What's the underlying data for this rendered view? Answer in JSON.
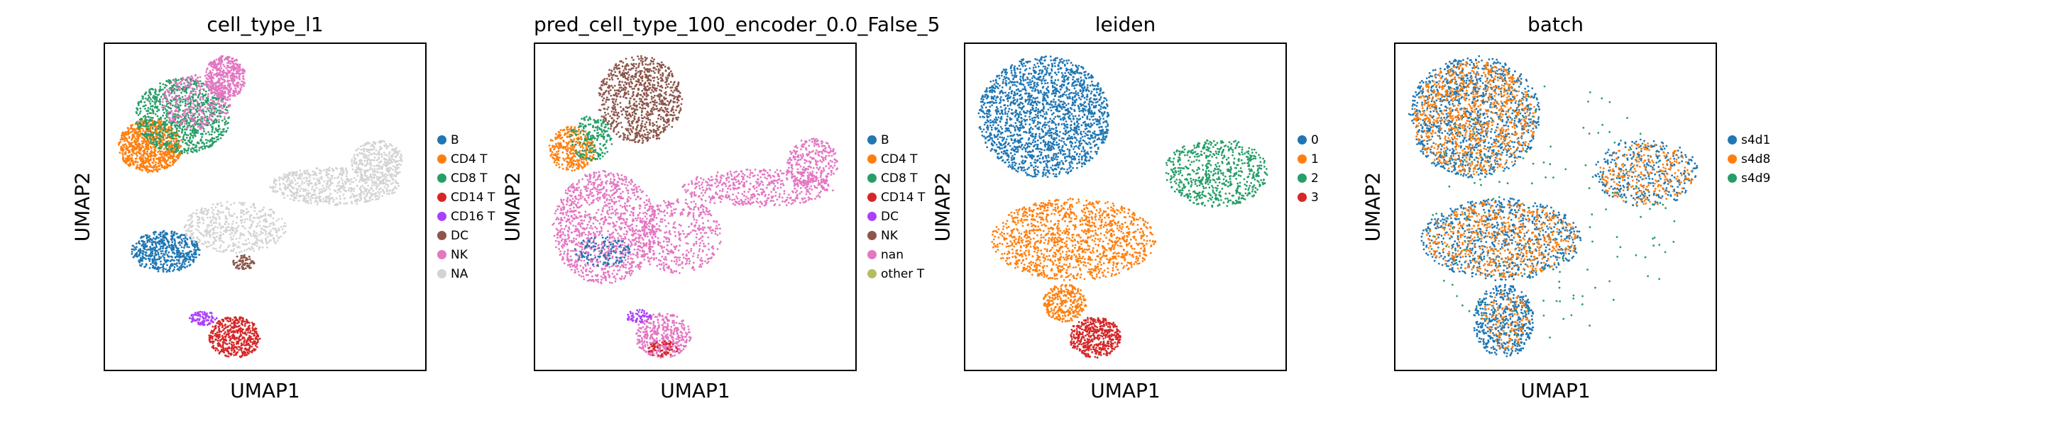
{
  "chart_data": [
    {
      "type": "scatter",
      "title": "cell_type_l1",
      "xlabel": "UMAP1",
      "ylabel": "UMAP2",
      "legend_position": "right",
      "categories": [
        {
          "label": "B",
          "color": "#1f77b4"
        },
        {
          "label": "CD4 T",
          "color": "#ff7f0e"
        },
        {
          "label": "CD8 T",
          "color": "#279e68"
        },
        {
          "label": "CD14 T",
          "color": "#d62728"
        },
        {
          "label": "CD16 T",
          "color": "#aa40fc"
        },
        {
          "label": "DC",
          "color": "#8c564b"
        },
        {
          "label": "NK",
          "color": "#e377c2"
        },
        {
          "label": "NA",
          "color": "#d3d3d3"
        }
      ],
      "clusters": [
        {
          "cat": "CD4 T",
          "x": [
            -4.6,
            -1.6
          ],
          "y": [
            2.9,
            6.0
          ],
          "n": 900
        },
        {
          "cat": "CD8 T",
          "x": [
            -3.8,
            0.6
          ],
          "y": [
            4.0,
            8.4
          ],
          "n": 1000
        },
        {
          "cat": "NK",
          "x": [
            -0.6,
            1.3
          ],
          "y": [
            7.2,
            9.7
          ],
          "n": 450
        },
        {
          "cat": "NK",
          "x": [
            -2.6,
            0.6
          ],
          "y": [
            5.4,
            8.6
          ],
          "n": 300
        },
        {
          "cat": "B",
          "x": [
            -4.0,
            -0.8
          ],
          "y": [
            -2.9,
            -0.5
          ],
          "n": 550
        },
        {
          "cat": "NA",
          "x": [
            -1.6,
            3.2
          ],
          "y": [
            -1.8,
            1.2
          ],
          "n": 500
        },
        {
          "cat": "NA",
          "x": [
            2.4,
            8.4
          ],
          "y": [
            1.0,
            3.2
          ],
          "n": 600
        },
        {
          "cat": "NA",
          "x": [
            6.2,
            8.6
          ],
          "y": [
            2.2,
            4.8
          ],
          "n": 350
        },
        {
          "cat": "DC",
          "x": [
            0.7,
            1.7
          ],
          "y": [
            -2.8,
            -1.9
          ],
          "n": 70
        },
        {
          "cat": "CD16 T",
          "x": [
            -1.3,
            0.0
          ],
          "y": [
            -6.0,
            -5.2
          ],
          "n": 100
        },
        {
          "cat": "CD14 T",
          "x": [
            -0.4,
            2.0
          ],
          "y": [
            -7.9,
            -5.5
          ],
          "n": 500
        }
      ]
    },
    {
      "type": "scatter",
      "title": "pred_cell_type_100_encoder_0.0_False_5",
      "xlabel": "UMAP1",
      "ylabel": "UMAP2",
      "legend_position": "right",
      "categories": [
        {
          "label": "B",
          "color": "#1f77b4"
        },
        {
          "label": "CD4 T",
          "color": "#ff7f0e"
        },
        {
          "label": "CD8 T",
          "color": "#279e68"
        },
        {
          "label": "CD14 T",
          "color": "#d62728"
        },
        {
          "label": "DC",
          "color": "#aa40fc"
        },
        {
          "label": "NK",
          "color": "#8c564b"
        },
        {
          "label": "nan",
          "color": "#e377c2"
        },
        {
          "label": "other T",
          "color": "#b5bd61"
        }
      ],
      "clusters": [
        {
          "cat": "NK",
          "x": [
            -2.3,
            1.6
          ],
          "y": [
            4.6,
            9.7
          ],
          "n": 900
        },
        {
          "cat": "CD4 T",
          "x": [
            -4.6,
            -2.4
          ],
          "y": [
            3.0,
            5.6
          ],
          "n": 350
        },
        {
          "cat": "CD8 T",
          "x": [
            -3.6,
            -1.6
          ],
          "y": [
            3.6,
            6.2
          ],
          "n": 200
        },
        {
          "cat": "nan",
          "x": [
            -4.4,
            0.4
          ],
          "y": [
            -3.6,
            3.0
          ],
          "n": 1200
        },
        {
          "cat": "nan",
          "x": [
            -0.6,
            3.4
          ],
          "y": [
            -3.0,
            1.4
          ],
          "n": 450
        },
        {
          "cat": "nan",
          "x": [
            1.6,
            8.6
          ],
          "y": [
            0.9,
            3.1
          ],
          "n": 500
        },
        {
          "cat": "nan",
          "x": [
            6.4,
            8.8
          ],
          "y": [
            2.0,
            4.9
          ],
          "n": 300
        },
        {
          "cat": "nan",
          "x": [
            -0.6,
            2.0
          ],
          "y": [
            -7.9,
            -5.3
          ],
          "n": 420
        },
        {
          "cat": "B",
          "x": [
            -3.4,
            -0.8
          ],
          "y": [
            -2.6,
            -0.8
          ],
          "n": 120
        },
        {
          "cat": "DC",
          "x": [
            -1.0,
            0.2
          ],
          "y": [
            -5.9,
            -5.1
          ],
          "n": 60
        },
        {
          "cat": "CD14 T",
          "x": [
            0.0,
            1.4
          ],
          "y": [
            -7.9,
            -6.9
          ],
          "n": 60
        }
      ]
    },
    {
      "type": "scatter",
      "title": "leiden",
      "xlabel": "UMAP1",
      "ylabel": "UMAP2",
      "legend_position": "right",
      "categories": [
        {
          "label": "0",
          "color": "#1f77b4"
        },
        {
          "label": "1",
          "color": "#ff7f0e"
        },
        {
          "label": "2",
          "color": "#279e68"
        },
        {
          "label": "3",
          "color": "#d62728"
        }
      ],
      "clusters": [
        {
          "cat": "0",
          "x": [
            -4.6,
            1.5
          ],
          "y": [
            2.6,
            9.7
          ],
          "n": 2000
        },
        {
          "cat": "1",
          "x": [
            -4.0,
            3.6
          ],
          "y": [
            -3.4,
            1.4
          ],
          "n": 1300
        },
        {
          "cat": "1",
          "x": [
            -1.6,
            0.4
          ],
          "y": [
            -5.8,
            -3.6
          ],
          "n": 300
        },
        {
          "cat": "2",
          "x": [
            4.0,
            8.8
          ],
          "y": [
            0.9,
            4.9
          ],
          "n": 650
        },
        {
          "cat": "3",
          "x": [
            -0.4,
            2.0
          ],
          "y": [
            -7.9,
            -5.5
          ],
          "n": 480
        }
      ]
    },
    {
      "type": "scatter",
      "title": "batch",
      "xlabel": "UMAP1",
      "ylabel": "UMAP2",
      "legend_position": "right",
      "categories": [
        {
          "label": "s4d1",
          "color": "#1f77b4"
        },
        {
          "label": "s4d8",
          "color": "#ff7f0e"
        },
        {
          "label": "s4d9",
          "color": "#279e68"
        }
      ],
      "clusters": [
        {
          "cat": "s4d1",
          "x": [
            -4.6,
            1.5
          ],
          "y": [
            2.6,
            9.7
          ],
          "n": 1200
        },
        {
          "cat": "s4d8",
          "x": [
            -4.4,
            1.3
          ],
          "y": [
            2.8,
            9.4
          ],
          "n": 900
        },
        {
          "cat": "s4d1",
          "x": [
            -4.0,
            3.4
          ],
          "y": [
            -3.4,
            1.4
          ],
          "n": 800
        },
        {
          "cat": "s4d8",
          "x": [
            -3.8,
            3.2
          ],
          "y": [
            -3.2,
            1.2
          ],
          "n": 600
        },
        {
          "cat": "s4d1",
          "x": [
            -1.6,
            1.2
          ],
          "y": [
            -7.9,
            -3.6
          ],
          "n": 500
        },
        {
          "cat": "s4d8",
          "x": [
            -1.2,
            1.0
          ],
          "y": [
            -7.4,
            -4.0
          ],
          "n": 120
        },
        {
          "cat": "s4d1",
          "x": [
            4.0,
            8.8
          ],
          "y": [
            0.9,
            4.9
          ],
          "n": 350
        },
        {
          "cat": "s4d8",
          "x": [
            4.2,
            8.6
          ],
          "y": [
            1.0,
            4.6
          ],
          "n": 250
        },
        {
          "cat": "s4d9",
          "x": [
            -4.0,
            8.0
          ],
          "y": [
            -7.0,
            8.0
          ],
          "n": 140
        }
      ]
    }
  ],
  "axis_range": {
    "x": [
      -5.2,
      9.6
    ],
    "y": [
      -8.6,
      10.4
    ]
  }
}
